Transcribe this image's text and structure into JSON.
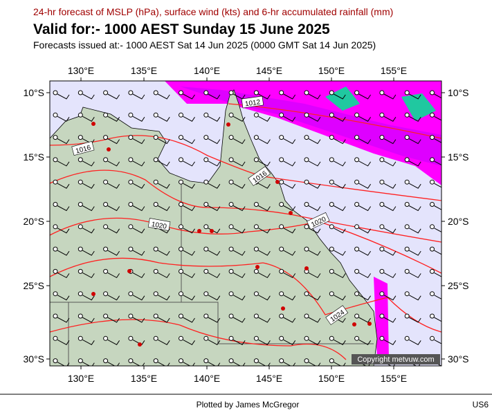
{
  "header": {
    "subtitle": "24-hr forecast of MSLP (hPa), surface wind (kts) and 6-hr accumulated rainfall (mm)",
    "title": "Valid for:- 1000 AEST Sunday 15 June 2025",
    "issued": "Forecasts issued at:- 1000 AEST Sat 14 Jun 2025 (0000 GMT Sat 14 Jun 2025)"
  },
  "map": {
    "lon_labels": [
      "130°E",
      "135°E",
      "140°E",
      "145°E",
      "150°E",
      "155°E"
    ],
    "lat_labels": [
      "10°S",
      "15°S",
      "20°S",
      "25°S",
      "30°S"
    ],
    "isobar_labels": [
      "1012",
      "1016",
      "1016",
      "1020",
      "1020",
      "1024"
    ],
    "copyright": "Copyright metvuw.com"
  },
  "footer": {
    "credit": "Plotted by James McGregor",
    "code": "US6"
  }
}
